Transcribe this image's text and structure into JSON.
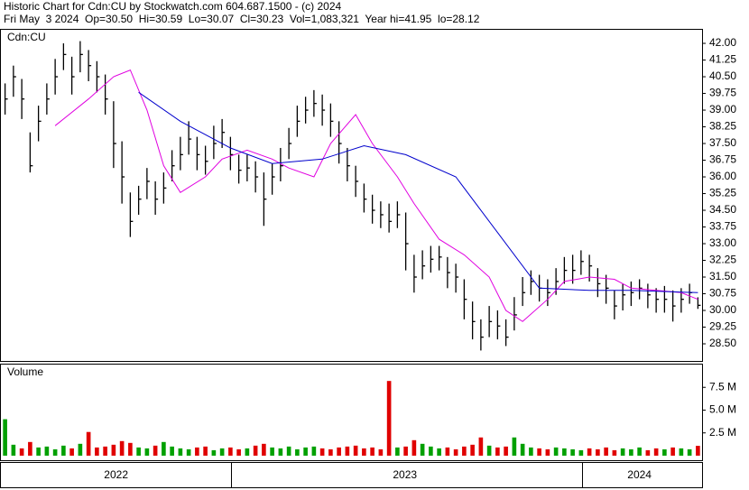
{
  "chart_data": [
    {
      "type": "ohlc",
      "title": "Historic Chart for Cdn:CU by Stockwatch.com 604.687.1500 - (c) 2024",
      "subtitle": "Fri May  3 2024  Op=30.50  Hi=30.59  Lo=30.07  Cl=30.23  Vol=1,083,321  Year hi=41.95  lo=28.12",
      "label": "Cdn:CU",
      "color": "#000000",
      "high": [
        40.2,
        41,
        40.4,
        38,
        39.2,
        40.2,
        41.3,
        42,
        41.4,
        42.1,
        41.7,
        41.2,
        40.6,
        39.4,
        37.6,
        35.3,
        35.6,
        36.4,
        35.8,
        36.2,
        37.2,
        37.8,
        38.5,
        37.8,
        37.4,
        38.3,
        38.6,
        37.8,
        37,
        37,
        36.7,
        36.2,
        36.6,
        37.3,
        38.2,
        39.2,
        39.6,
        39.9,
        39.7,
        39.3,
        38.5,
        37.3,
        36.5,
        35.7,
        35.2,
        34.9,
        34.8,
        34.9,
        34.4,
        32.5,
        32.7,
        32.9,
        32.9,
        32.4,
        32.1,
        31.4,
        30.4,
        29.6,
        30.2,
        30,
        29.6,
        30.6,
        31.5,
        31.8,
        31.6,
        31.4,
        31.9,
        32.4,
        32.5,
        32.7,
        32.5,
        31.9,
        31.6,
        30.9,
        31.2,
        31.3,
        31.4,
        31.2,
        31,
        31.1,
        30.9,
        31,
        31.2,
        30.59
      ],
      "low": [
        38.8,
        39.6,
        38.6,
        36.2,
        37.6,
        38.8,
        39.7,
        40.8,
        39.7,
        40.7,
        40.3,
        39.8,
        38.8,
        36.4,
        34.8,
        33.3,
        34.3,
        35,
        34.3,
        34.8,
        35.8,
        36.3,
        37,
        36.3,
        36.1,
        36.8,
        37.3,
        36.3,
        35.7,
        35.8,
        35.3,
        33.8,
        35.2,
        35.8,
        36.8,
        37.8,
        38.4,
        38.7,
        38.3,
        37.8,
        36.6,
        35.8,
        35.1,
        34.4,
        33.9,
        33.7,
        33.5,
        33.7,
        31.8,
        30.8,
        31.4,
        31.7,
        31.8,
        31,
        30.8,
        29.6,
        28.7,
        28.2,
        28.8,
        28.7,
        28.4,
        29.1,
        30.2,
        30.7,
        30.4,
        30.2,
        30.7,
        31.2,
        31.2,
        31.6,
        31.3,
        30.6,
        30.3,
        29.6,
        30,
        30.2,
        30.5,
        30.1,
        29.9,
        29.9,
        29.5,
        29.9,
        30.3,
        30.07
      ],
      "close": [
        39.5,
        40.5,
        39.5,
        36.5,
        38.5,
        39.5,
        40.5,
        41.5,
        40.5,
        41.5,
        41,
        40.5,
        39.5,
        37.5,
        36,
        34,
        35,
        35.8,
        35,
        35.5,
        36.5,
        37,
        37.7,
        37,
        36.7,
        37.5,
        38,
        37,
        36.3,
        36.4,
        36,
        35,
        36,
        36.5,
        37.5,
        38.5,
        39,
        39.3,
        39,
        38.5,
        37.5,
        36.5,
        35.8,
        35,
        34.5,
        34.3,
        34,
        34.3,
        33,
        31.5,
        32,
        32.3,
        32.4,
        31.7,
        31.5,
        30.5,
        29.5,
        28.8,
        29.5,
        29.3,
        28.8,
        29.8,
        30.8,
        31.3,
        31,
        30.8,
        31.3,
        31.8,
        31.8,
        32.2,
        32,
        31.2,
        31,
        30.2,
        30.7,
        30.8,
        31,
        30.7,
        30.5,
        30.5,
        30.2,
        30.5,
        30.8,
        30.23
      ],
      "series": [
        {
          "color": "#e000e0",
          "x": [
            6,
            10,
            13,
            15,
            17,
            19,
            21,
            24,
            26,
            29,
            32,
            34,
            37,
            39,
            42,
            44,
            47,
            49,
            52,
            55,
            58,
            60,
            62,
            65,
            67,
            70,
            73,
            75,
            78,
            81,
            83
          ],
          "values": [
            38.3,
            39.5,
            40.5,
            40.8,
            39,
            36.5,
            35.3,
            36,
            36.8,
            37.2,
            36.8,
            36.4,
            36,
            37.5,
            38.8,
            37.5,
            36,
            34.8,
            33.2,
            32.5,
            31.5,
            30,
            29.5,
            30.5,
            31.3,
            31.5,
            31.4,
            31,
            30.9,
            30.8,
            30.5
          ]
        },
        {
          "color": "#0000cc",
          "x": [
            16,
            21,
            27,
            32,
            38,
            43,
            48,
            54,
            59,
            64,
            70,
            75,
            83
          ],
          "values": [
            39.8,
            38.5,
            37.3,
            36.6,
            36.8,
            37.4,
            37,
            36,
            33.5,
            31,
            30.9,
            30.9,
            30.8
          ]
        }
      ],
      "xlim": [
        -0.5,
        83.5
      ],
      "ylim": [
        27.73,
        42.61
      ],
      "yticks": [
        {
          "value": 28.5,
          "label": "28.50"
        },
        29.25,
        {
          "value": 30,
          "label": "30.00"
        },
        30.75,
        {
          "value": 31.5,
          "label": "31.50"
        },
        32.25,
        {
          "value": 33,
          "label": "33.00"
        },
        33.75,
        {
          "value": 34.5,
          "label": "34.50"
        },
        35.25,
        {
          "value": 36,
          "label": "36.00"
        },
        36.75,
        {
          "value": 37.5,
          "label": "37.50"
        },
        38.25,
        {
          "value": 39,
          "label": "39.00"
        },
        39.75,
        {
          "value": 40.5,
          "label": "40.50"
        },
        41.25,
        {
          "value": 42,
          "label": "42.00"
        }
      ]
    },
    {
      "type": "bar",
      "label": "Volume",
      "colors": [
        "#00a000",
        "#e00000"
      ],
      "values": [
        4.0,
        1.2,
        0.8,
        1.5,
        0.9,
        1.0,
        0.7,
        1.1,
        0.8,
        1.3,
        2.6,
        0.9,
        1.0,
        1.2,
        1.6,
        1.4,
        0.9,
        0.8,
        1.1,
        1.5,
        1.0,
        0.8,
        0.7,
        0.9,
        1.0,
        0.6,
        0.8,
        0.9,
        0.7,
        0.8,
        1.1,
        1.3,
        0.9,
        0.8,
        1.0,
        0.7,
        0.9,
        1.0,
        0.8,
        0.7,
        0.9,
        1.0,
        1.1,
        0.8,
        0.9,
        0.7,
        8.2,
        0.9,
        1.0,
        1.7,
        1.3,
        1.0,
        0.8,
        0.9,
        0.7,
        1.0,
        1.2,
        2.0,
        1.1,
        0.9,
        1.0,
        2.0,
        1.3,
        0.9,
        0.8,
        0.7,
        0.9,
        0.8,
        0.7,
        0.6,
        0.8,
        0.7,
        0.9,
        0.6,
        0.8,
        0.7,
        0.9,
        0.6,
        0.8,
        0.7,
        0.9,
        0.8,
        0.7,
        1.08
      ],
      "xlim": [
        -0.5,
        83.5
      ],
      "ylim": [
        -0.5,
        10
      ],
      "yticks": [
        {
          "value": 2.5,
          "label": "2.5 M"
        },
        {
          "value": 5,
          "label": "5.0 M"
        },
        {
          "value": 7.5,
          "label": "7.5 M"
        }
      ],
      "xticks": [
        {
          "value": 13.3,
          "label": "2022"
        },
        {
          "value": 47.9,
          "label": "2023"
        },
        {
          "value": 76,
          "label": "2024"
        }
      ]
    }
  ]
}
